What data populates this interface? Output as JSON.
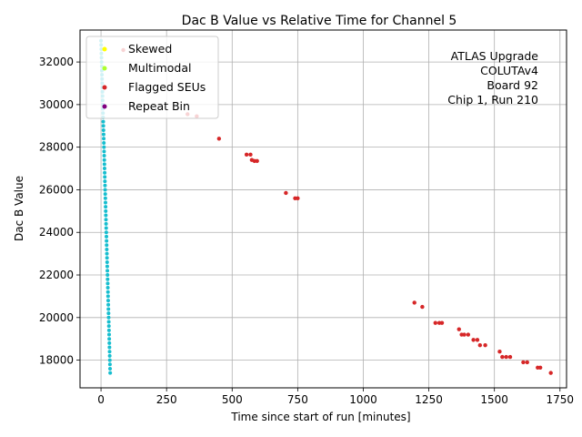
{
  "chart_data": {
    "type": "scatter",
    "title": "Dac B Value vs Relative Time for Channel 5",
    "xlabel": "Time since start of run [minutes]",
    "ylabel": "Dac B Value",
    "xlim": [
      -80,
      1775
    ],
    "ylim": [
      16700,
      33500
    ],
    "xticks": [
      0,
      250,
      500,
      750,
      1000,
      1250,
      1500,
      1750
    ],
    "yticks": [
      18000,
      20000,
      22000,
      24000,
      26000,
      28000,
      30000,
      32000
    ],
    "grid": true,
    "legend_position": "top-left",
    "annotation": [
      "ATLAS Upgrade",
      "COLUTAv4",
      "Board 92",
      "Chip 1, Run 210"
    ],
    "colors": {
      "main": "#17becf",
      "skewed": "#ffff00",
      "multimodal": "#adff2f",
      "flagged": "#d62728",
      "repeat": "#800080"
    },
    "series": [
      {
        "name": "Skewed",
        "key": "skewed",
        "points": []
      },
      {
        "name": "Multimodal",
        "key": "multimodal",
        "points": []
      },
      {
        "name": "Flagged SEUs",
        "key": "flagged",
        "points": [
          [
            85,
            32560
          ],
          [
            330,
            29550
          ],
          [
            365,
            29450
          ],
          [
            450,
            28400
          ],
          [
            555,
            27650
          ],
          [
            570,
            27650
          ],
          [
            575,
            27400
          ],
          [
            585,
            27350
          ],
          [
            595,
            27350
          ],
          [
            705,
            25850
          ],
          [
            740,
            25600
          ],
          [
            750,
            25600
          ],
          [
            1195,
            20700
          ],
          [
            1225,
            20500
          ],
          [
            1275,
            19750
          ],
          [
            1290,
            19750
          ],
          [
            1300,
            19750
          ],
          [
            1365,
            19450
          ],
          [
            1375,
            19200
          ],
          [
            1385,
            19200
          ],
          [
            1400,
            19200
          ],
          [
            1420,
            18950
          ],
          [
            1435,
            18950
          ],
          [
            1445,
            18700
          ],
          [
            1465,
            18700
          ],
          [
            1520,
            18400
          ],
          [
            1530,
            18150
          ],
          [
            1545,
            18150
          ],
          [
            1560,
            18150
          ],
          [
            1610,
            17900
          ],
          [
            1625,
            17900
          ],
          [
            1665,
            17650
          ],
          [
            1675,
            17650
          ],
          [
            1715,
            17400
          ]
        ]
      },
      {
        "name": "Repeat Bin",
        "key": "repeat",
        "points": []
      },
      {
        "key": "main",
        "line": {
          "x_start": 0,
          "x_end": 35,
          "y_start": 33000,
          "y_end": 17400,
          "step": 200
        }
      }
    ]
  }
}
